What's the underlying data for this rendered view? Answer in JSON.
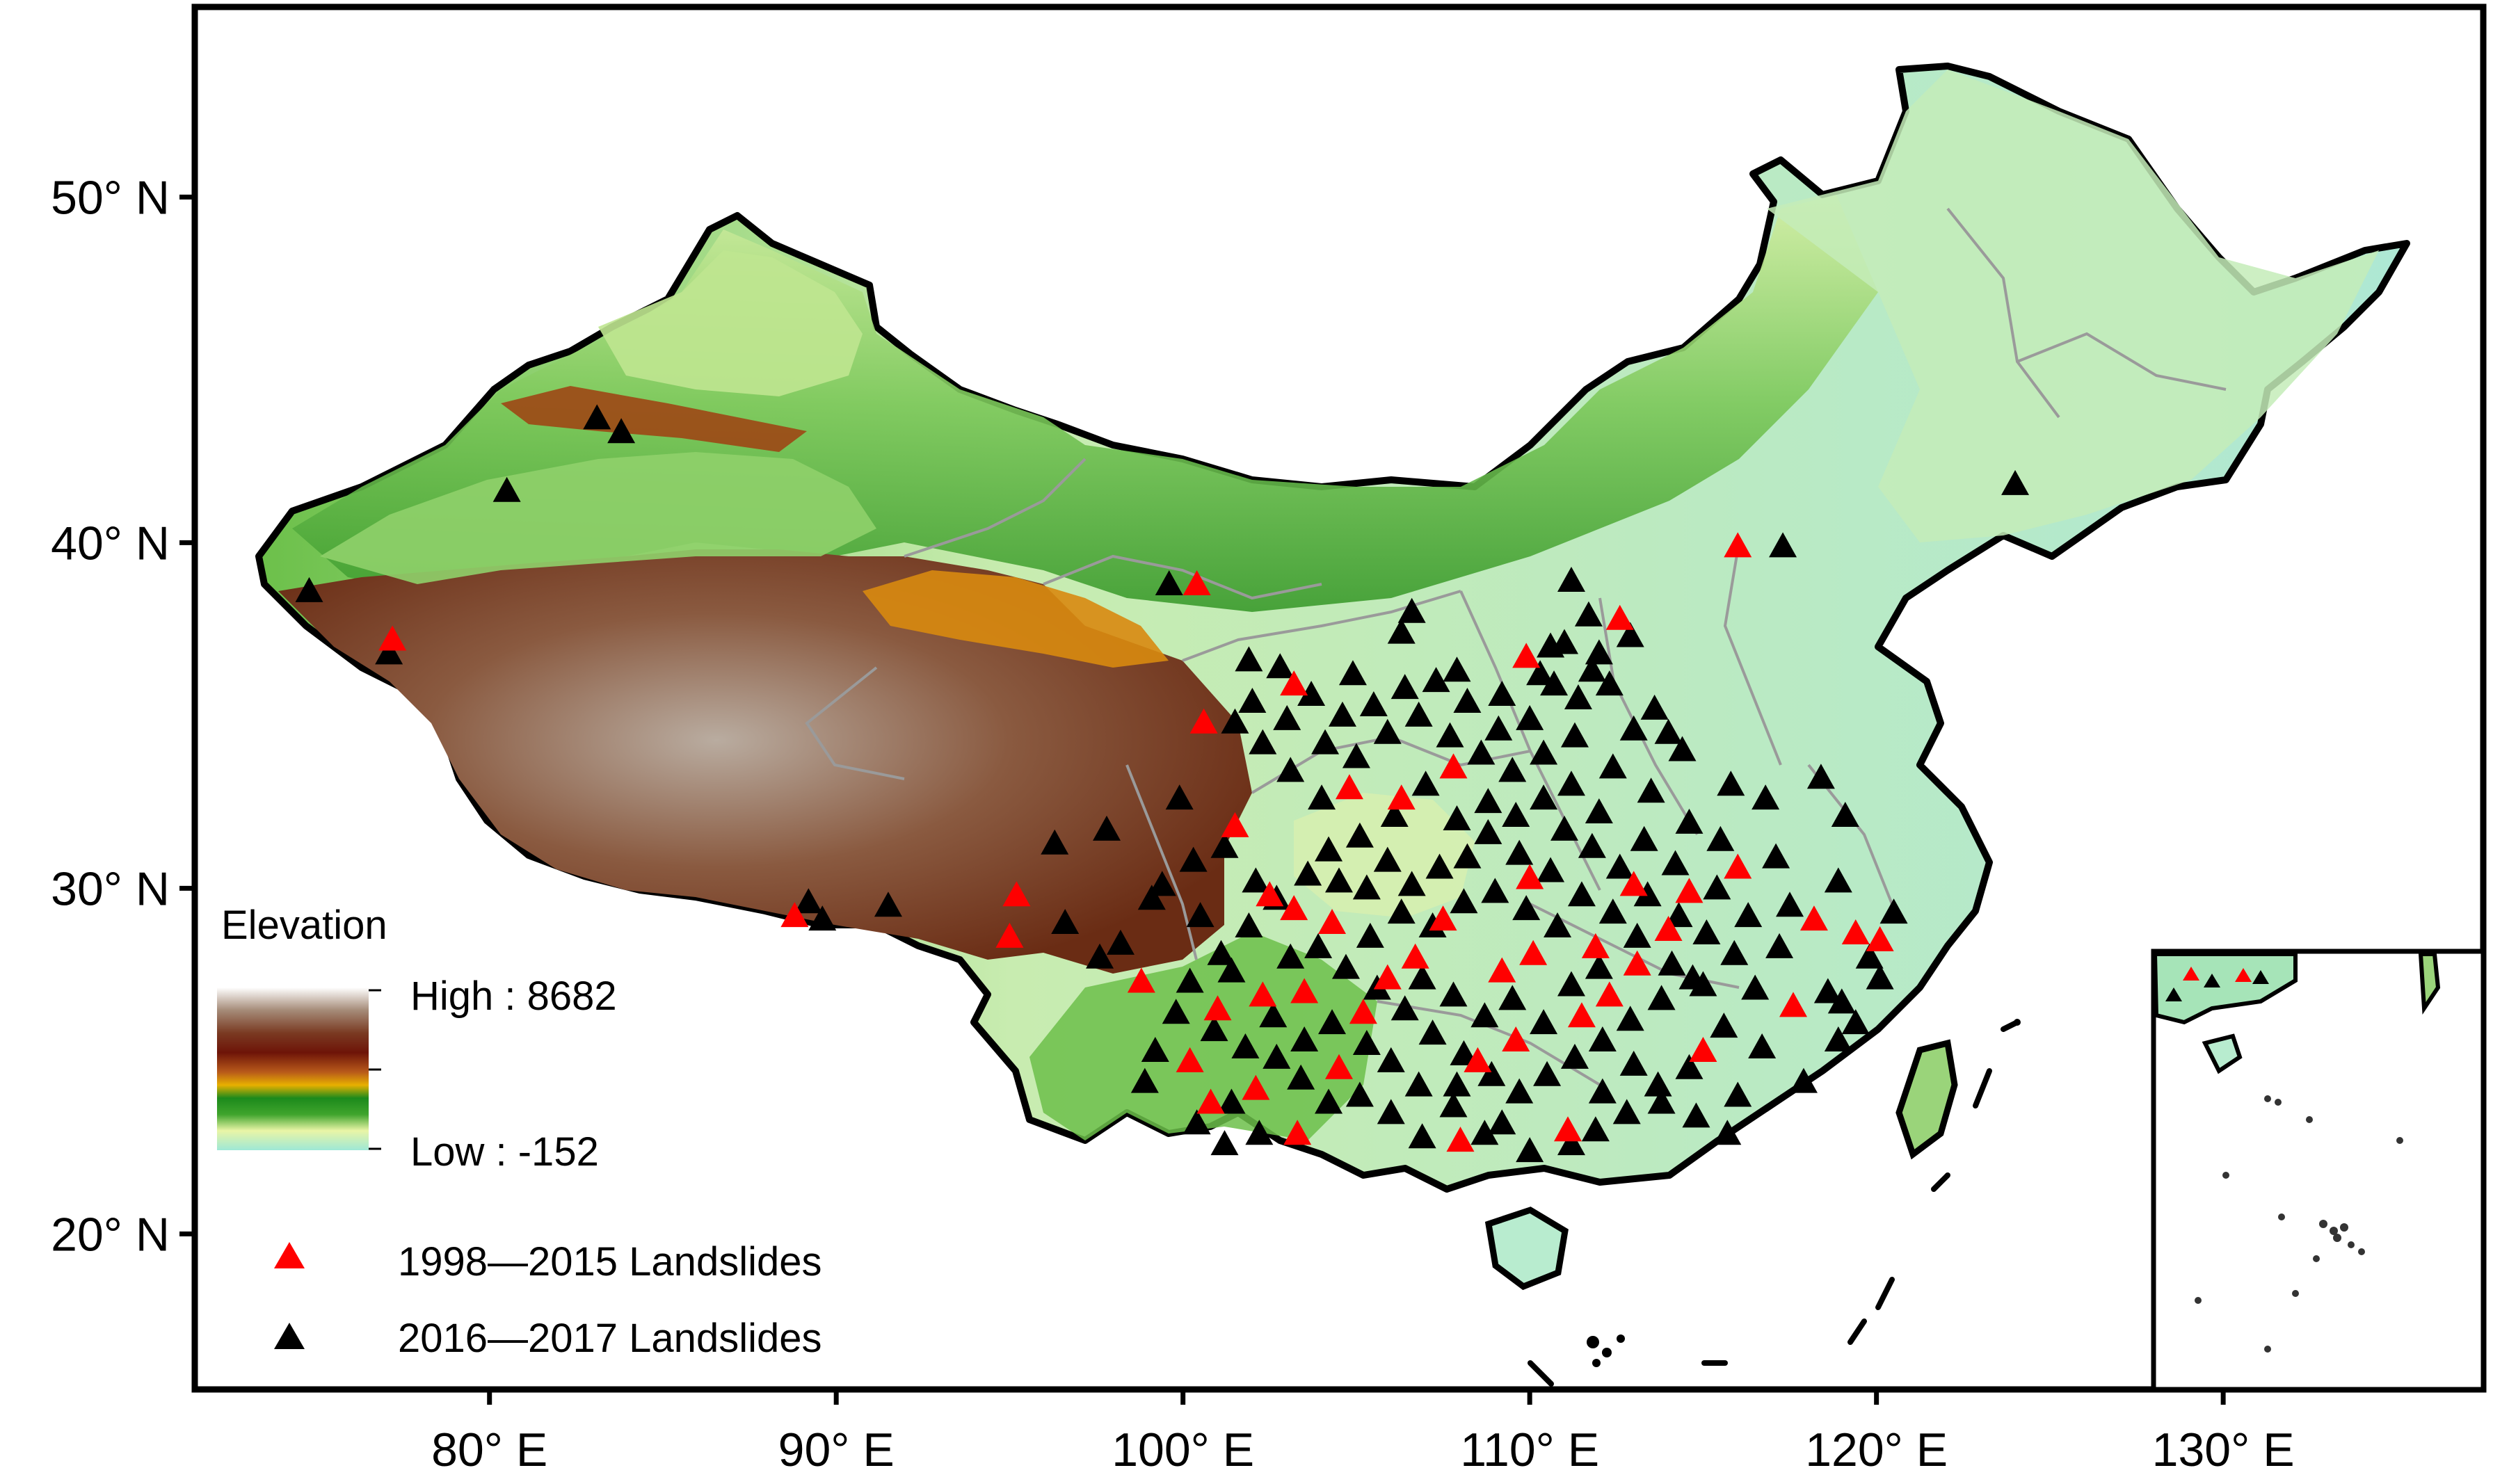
{
  "axes": {
    "y_ticks": [
      {
        "value": 50,
        "label": "50° N"
      },
      {
        "value": 40,
        "label": "40° N"
      },
      {
        "value": 30,
        "label": "30° N"
      },
      {
        "value": 20,
        "label": "20° N"
      }
    ],
    "x_ticks": [
      {
        "value": 80,
        "label": "80° E"
      },
      {
        "value": 90,
        "label": "90° E"
      },
      {
        "value": 100,
        "label": "100° E"
      },
      {
        "value": 110,
        "label": "110° E"
      },
      {
        "value": 120,
        "label": "120° E"
      },
      {
        "value": 130,
        "label": "130° E"
      }
    ],
    "lon_range": [
      71.5,
      137.5
    ],
    "lat_range": [
      15.5,
      55.5
    ]
  },
  "elevation_legend": {
    "title": "Elevation",
    "high_label": "High : 8682",
    "low_label": "Low : -152",
    "colors": [
      "#9ee8d6",
      "#e9f5a6",
      "#3fa42c",
      "#1c8a1c",
      "#e8b000",
      "#b85a1a",
      "#6e1408",
      "#7a3a22",
      "#a58b78",
      "#ffffff"
    ]
  },
  "landslide_legend": {
    "items": [
      {
        "label": "1998—2015 Landslides",
        "color": "#ff0000"
      },
      {
        "label": "2016—2017 Landslides",
        "color": "#000000"
      }
    ]
  },
  "colors": {
    "lowland": "#b6ecd4",
    "plain": "#d9f2b0",
    "green": "#52b23a",
    "plateau_brown": "#7a3a22",
    "plateau_high": "#a89888",
    "basin": "#d88a10",
    "province_border": "#9a9a9a",
    "country_border": "#000000"
  },
  "landslides_1998_2015": [
    [
      77.2,
      37.2
    ],
    [
      88.8,
      29.2
    ],
    [
      95.2,
      29.8
    ],
    [
      95.0,
      28.6
    ],
    [
      100.4,
      38.8
    ],
    [
      100.6,
      34.8
    ],
    [
      101.5,
      31.8
    ],
    [
      103.2,
      35.9
    ],
    [
      102.5,
      29.8
    ],
    [
      103.5,
      27.0
    ],
    [
      101.0,
      26.5
    ],
    [
      100.2,
      25.0
    ],
    [
      100.8,
      23.8
    ],
    [
      102.1,
      24.2
    ],
    [
      103.3,
      22.9
    ],
    [
      104.5,
      24.8
    ],
    [
      105.2,
      26.4
    ],
    [
      104.8,
      32.9
    ],
    [
      106.3,
      32.6
    ],
    [
      107.5,
      29.1
    ],
    [
      108.5,
      25.0
    ],
    [
      109.2,
      27.6
    ],
    [
      110.1,
      28.1
    ],
    [
      110.0,
      30.3
    ],
    [
      109.9,
      36.7
    ],
    [
      112.6,
      37.8
    ],
    [
      111.5,
      26.3
    ],
    [
      111.1,
      23.0
    ],
    [
      112.3,
      26.9
    ],
    [
      113.1,
      27.8
    ],
    [
      114.0,
      28.8
    ],
    [
      115.0,
      25.3
    ],
    [
      116.0,
      30.6
    ],
    [
      116.0,
      39.9
    ],
    [
      117.6,
      26.6
    ],
    [
      118.2,
      29.1
    ],
    [
      119.4,
      28.7
    ],
    [
      120.1,
      28.5
    ],
    [
      103.2,
      29.4
    ],
    [
      104.3,
      29.0
    ],
    [
      106.7,
      28.0
    ],
    [
      108.0,
      22.7
    ],
    [
      109.6,
      25.6
    ],
    [
      113.0,
      30.1
    ],
    [
      107.8,
      33.5
    ],
    [
      102.3,
      26.9
    ],
    [
      105.9,
      27.4
    ],
    [
      111.9,
      28.3
    ],
    [
      114.6,
      29.9
    ],
    [
      98.8,
      27.3
    ]
  ],
  "landslides_2016_2017": [
    [
      74.8,
      38.6
    ],
    [
      80.5,
      41.5
    ],
    [
      83.1,
      43.6
    ],
    [
      83.8,
      43.2
    ],
    [
      77.1,
      36.8
    ],
    [
      89.2,
      29.6
    ],
    [
      89.6,
      29.1
    ],
    [
      91.5,
      29.5
    ],
    [
      96.3,
      31.3
    ],
    [
      97.8,
      31.7
    ],
    [
      99.6,
      38.8
    ],
    [
      101.9,
      36.6
    ],
    [
      102.8,
      36.4
    ],
    [
      103.7,
      35.6
    ],
    [
      104.9,
      36.2
    ],
    [
      106.3,
      37.4
    ],
    [
      106.6,
      38.0
    ],
    [
      107.9,
      36.3
    ],
    [
      109.2,
      35.6
    ],
    [
      110.6,
      37.0
    ],
    [
      111.2,
      38.9
    ],
    [
      111.7,
      37.9
    ],
    [
      111.0,
      37.1
    ],
    [
      110.3,
      36.2
    ],
    [
      111.4,
      35.5
    ],
    [
      112.3,
      35.9
    ],
    [
      113.0,
      34.6
    ],
    [
      114.0,
      34.5
    ],
    [
      115.8,
      33.0
    ],
    [
      116.8,
      32.6
    ],
    [
      118.4,
      33.2
    ],
    [
      119.1,
      32.1
    ],
    [
      117.1,
      30.9
    ],
    [
      118.9,
      30.2
    ],
    [
      120.5,
      29.3
    ],
    [
      119.8,
      28.0
    ],
    [
      117.2,
      28.3
    ],
    [
      116.5,
      27.1
    ],
    [
      115.6,
      26.0
    ],
    [
      116.7,
      25.4
    ],
    [
      118.9,
      25.6
    ],
    [
      117.9,
      24.4
    ],
    [
      116.0,
      24.0
    ],
    [
      114.8,
      23.4
    ],
    [
      113.8,
      23.8
    ],
    [
      113.0,
      24.9
    ],
    [
      112.1,
      24.1
    ],
    [
      111.2,
      22.6
    ],
    [
      110.0,
      22.4
    ],
    [
      108.7,
      22.9
    ],
    [
      107.8,
      23.7
    ],
    [
      106.8,
      24.3
    ],
    [
      106.0,
      25.0
    ],
    [
      105.3,
      25.5
    ],
    [
      104.3,
      26.1
    ],
    [
      103.5,
      25.6
    ],
    [
      102.7,
      25.1
    ],
    [
      101.8,
      25.4
    ],
    [
      100.9,
      25.9
    ],
    [
      99.8,
      26.4
    ],
    [
      99.2,
      25.3
    ],
    [
      98.9,
      24.4
    ],
    [
      100.4,
      23.2
    ],
    [
      101.2,
      22.6
    ],
    [
      102.2,
      22.9
    ],
    [
      101.4,
      23.8
    ],
    [
      100.2,
      27.3
    ],
    [
      101.1,
      28.1
    ],
    [
      101.9,
      28.9
    ],
    [
      102.7,
      29.7
    ],
    [
      103.6,
      30.4
    ],
    [
      104.2,
      31.1
    ],
    [
      105.1,
      31.5
    ],
    [
      105.9,
      30.8
    ],
    [
      106.6,
      30.1
    ],
    [
      107.4,
      30.6
    ],
    [
      108.2,
      30.9
    ],
    [
      108.8,
      31.6
    ],
    [
      109.6,
      32.1
    ],
    [
      110.4,
      32.6
    ],
    [
      111.0,
      31.7
    ],
    [
      111.8,
      31.2
    ],
    [
      112.6,
      30.6
    ],
    [
      113.4,
      29.8
    ],
    [
      114.3,
      29.2
    ],
    [
      115.1,
      28.7
    ],
    [
      115.9,
      28.1
    ],
    [
      114.7,
      27.4
    ],
    [
      113.8,
      26.8
    ],
    [
      112.9,
      26.2
    ],
    [
      112.1,
      25.6
    ],
    [
      111.3,
      25.1
    ],
    [
      110.5,
      24.6
    ],
    [
      109.7,
      24.1
    ],
    [
      108.9,
      24.6
    ],
    [
      108.1,
      25.2
    ],
    [
      107.2,
      25.8
    ],
    [
      106.4,
      26.5
    ],
    [
      105.6,
      27.1
    ],
    [
      104.7,
      27.7
    ],
    [
      103.9,
      28.3
    ],
    [
      103.1,
      28.0
    ],
    [
      104.0,
      32.6
    ],
    [
      103.1,
      33.4
    ],
    [
      102.3,
      34.2
    ],
    [
      101.5,
      34.8
    ],
    [
      102.0,
      35.4
    ],
    [
      103.0,
      34.9
    ],
    [
      104.1,
      34.2
    ],
    [
      105.0,
      33.8
    ],
    [
      105.9,
      34.5
    ],
    [
      106.8,
      35.0
    ],
    [
      107.7,
      34.4
    ],
    [
      108.6,
      33.9
    ],
    [
      109.5,
      33.4
    ],
    [
      110.4,
      33.9
    ],
    [
      111.3,
      34.4
    ],
    [
      107.0,
      33.0
    ],
    [
      106.1,
      32.1
    ],
    [
      107.9,
      32.0
    ],
    [
      108.8,
      32.5
    ],
    [
      109.7,
      31.0
    ],
    [
      110.6,
      30.5
    ],
    [
      111.5,
      29.8
    ],
    [
      112.4,
      29.3
    ],
    [
      110.8,
      28.9
    ],
    [
      109.9,
      29.4
    ],
    [
      109.0,
      29.9
    ],
    [
      108.1,
      29.6
    ],
    [
      107.2,
      28.9
    ],
    [
      106.3,
      29.3
    ],
    [
      105.4,
      28.6
    ],
    [
      104.5,
      30.2
    ],
    [
      105.3,
      30.0
    ],
    [
      106.9,
      27.4
    ],
    [
      107.8,
      26.9
    ],
    [
      108.7,
      26.3
    ],
    [
      109.5,
      26.8
    ],
    [
      110.4,
      26.1
    ],
    [
      111.2,
      27.2
    ],
    [
      112.0,
      27.7
    ],
    [
      113.1,
      28.6
    ],
    [
      114.1,
      27.8
    ],
    [
      115.0,
      27.2
    ],
    [
      119.0,
      26.7
    ],
    [
      120.1,
      27.4
    ],
    [
      118.6,
      27.0
    ],
    [
      119.4,
      26.1
    ],
    [
      117.5,
      29.5
    ],
    [
      116.3,
      29.2
    ],
    [
      115.4,
      30.0
    ],
    [
      114.2,
      30.7
    ],
    [
      113.3,
      31.4
    ],
    [
      112.0,
      32.2
    ],
    [
      111.2,
      33.0
    ],
    [
      110.0,
      34.9
    ],
    [
      109.1,
      34.6
    ],
    [
      108.2,
      35.4
    ],
    [
      107.3,
      36.0
    ],
    [
      106.4,
      35.8
    ],
    [
      105.5,
      35.3
    ],
    [
      104.6,
      35.0
    ],
    [
      112.0,
      36.8
    ],
    [
      112.9,
      37.3
    ],
    [
      111.8,
      36.3
    ],
    [
      110.7,
      35.9
    ],
    [
      113.6,
      35.2
    ],
    [
      114.4,
      34.0
    ],
    [
      112.4,
      33.5
    ],
    [
      113.5,
      32.8
    ],
    [
      114.6,
      31.9
    ],
    [
      115.5,
      31.4
    ],
    [
      124.0,
      41.7
    ],
    [
      117.3,
      39.9
    ],
    [
      99.9,
      32.6
    ],
    [
      99.1,
      29.7
    ],
    [
      98.2,
      28.4
    ],
    [
      97.6,
      28.0
    ],
    [
      96.6,
      29.0
    ],
    [
      99.4,
      30.1
    ],
    [
      100.3,
      30.8
    ],
    [
      101.2,
      31.2
    ],
    [
      102.1,
      30.2
    ],
    [
      100.5,
      29.2
    ],
    [
      101.4,
      27.6
    ],
    [
      102.6,
      26.3
    ],
    [
      103.4,
      24.5
    ],
    [
      104.2,
      23.8
    ],
    [
      105.1,
      24.0
    ],
    [
      106.0,
      23.5
    ],
    [
      106.9,
      22.8
    ],
    [
      107.9,
      24.3
    ],
    [
      109.2,
      23.2
    ],
    [
      111.9,
      23.0
    ],
    [
      112.8,
      23.5
    ],
    [
      113.7,
      24.3
    ],
    [
      114.6,
      24.8
    ],
    [
      115.7,
      22.9
    ]
  ],
  "inset": {
    "islands_note": ""
  }
}
